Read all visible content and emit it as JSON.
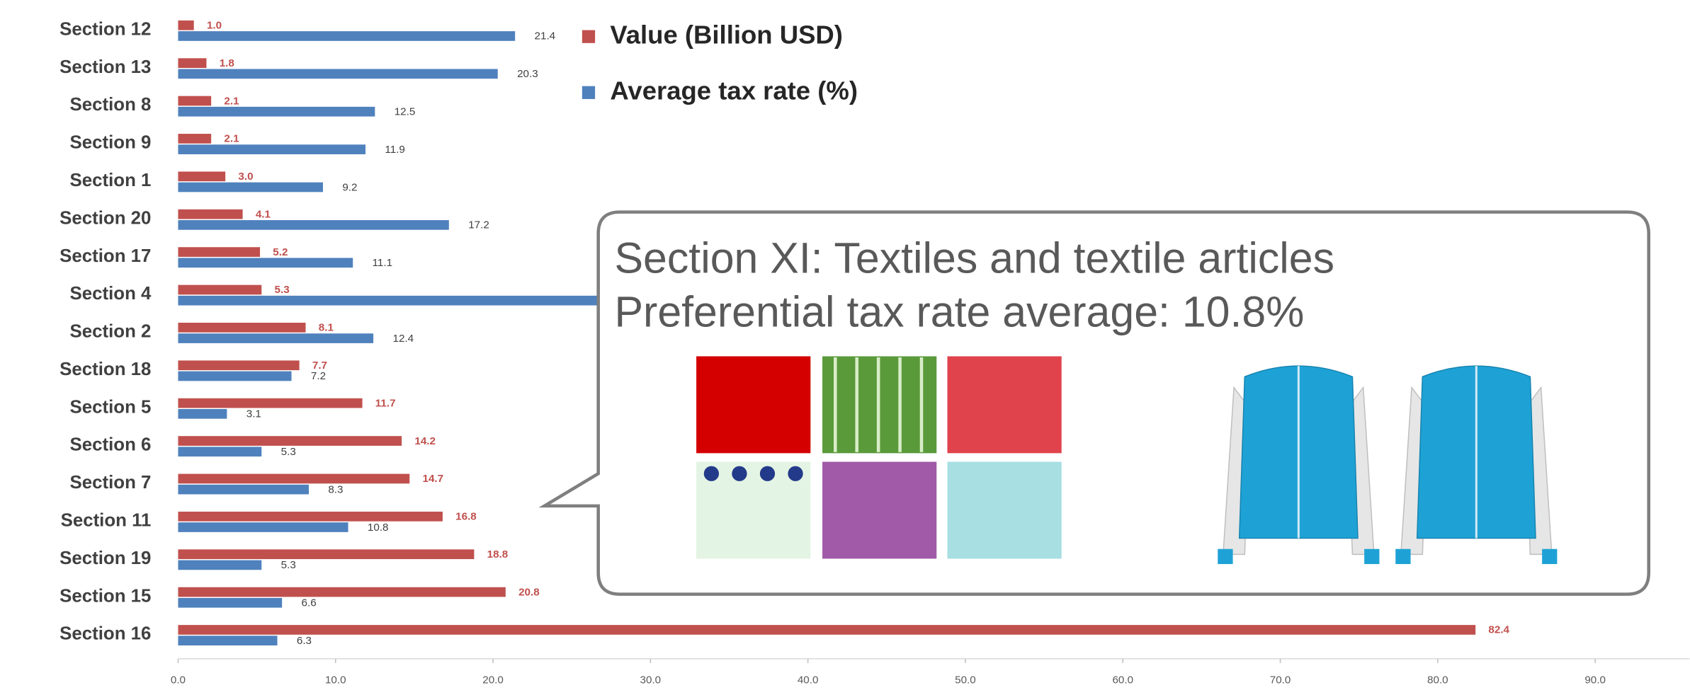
{
  "chart_data": {
    "type": "bar",
    "orientation": "horizontal",
    "categories": [
      "Section 12",
      "Section 13",
      "Section 8",
      "Section 9",
      "Section 1",
      "Section 20",
      "Section 17",
      "Section 4",
      "Section 2",
      "Section 18",
      "Section 5",
      "Section 6",
      "Section 7",
      "Section 11",
      "Section 19",
      "Section 15",
      "Section 16"
    ],
    "series": [
      {
        "name": "Value (Billion USD)",
        "color": "#c0504d",
        "values": [
          1.0,
          1.8,
          2.1,
          2.1,
          3.0,
          4.1,
          5.2,
          5.3,
          8.1,
          7.7,
          11.7,
          14.2,
          14.7,
          16.8,
          18.8,
          20.8,
          82.4
        ],
        "value_labels": [
          "1.0",
          "1.8",
          "2.1",
          "2.1",
          "3.0",
          "4.1",
          "5.2",
          "5.3",
          "8.1",
          "7.7",
          "11.7",
          "14.2",
          "14.7",
          "16.8",
          "18.8",
          "20.8",
          "82.4"
        ]
      },
      {
        "name": "Average tax rate (%)",
        "color": "#4f81bd",
        "values": [
          21.4,
          20.3,
          12.5,
          11.9,
          9.2,
          17.2,
          11.1,
          33.0,
          12.4,
          7.2,
          3.1,
          5.3,
          8.3,
          10.8,
          5.3,
          6.6,
          6.3
        ],
        "value_labels": [
          "21.4",
          "20.3",
          "12.5",
          "11.9",
          "9.2",
          "17.2",
          "11.1",
          null,
          "12.4",
          "7.2",
          "3.1",
          "5.3",
          "8.3",
          "10.8",
          "5.3",
          "6.6",
          "6.3"
        ]
      }
    ],
    "xlim": [
      0,
      96
    ],
    "xticks": [
      {
        "value": 0,
        "label": "0.0"
      },
      {
        "value": 10,
        "label": "10.0"
      },
      {
        "value": 20,
        "label": "20.0"
      },
      {
        "value": 30,
        "label": "30.0"
      },
      {
        "value": 40,
        "label": "40.0"
      },
      {
        "value": 50,
        "label": "50.0"
      },
      {
        "value": 60,
        "label": "60.0"
      },
      {
        "value": 70,
        "label": "70.0"
      },
      {
        "value": 80,
        "label": "80.0"
      },
      {
        "value": 90,
        "label": "90.0"
      }
    ],
    "legend": "upper center",
    "annotation": {
      "title": "Section XI: Textiles and textile articles",
      "text": "Preferential tax rate average: 10.8%"
    }
  }
}
